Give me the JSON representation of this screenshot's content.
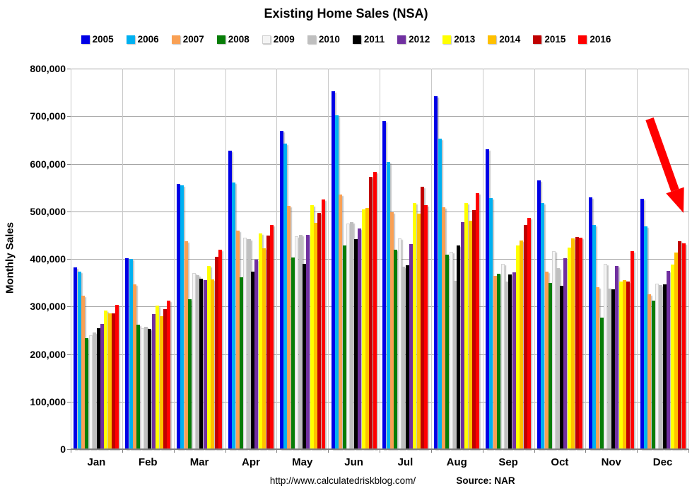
{
  "title": "Existing Home Sales (NSA)",
  "y_axis": {
    "title": "Monthly Sales",
    "tick_labels": [
      "800,000",
      "700,000",
      "600,000",
      "500,000",
      "400,000",
      "300,000",
      "200,000",
      "100,000",
      "0"
    ]
  },
  "footer": {
    "url": "http://www.calculatedriskblog.com/",
    "source": "Source: NAR"
  },
  "annotations": {
    "arrow": "red-down-right-arrow",
    "arrow_color": "#ff0000"
  },
  "chart_data": {
    "type": "bar",
    "title": "Existing Home Sales (NSA)",
    "xlabel": "",
    "ylabel": "Monthly Sales",
    "ylim": [
      0,
      800000
    ],
    "grid": true,
    "legend_position": "top",
    "categories": [
      "Jan",
      "Feb",
      "Mar",
      "Apr",
      "May",
      "Jun",
      "Jul",
      "Aug",
      "Sep",
      "Oct",
      "Nov",
      "Dec"
    ],
    "series": [
      {
        "name": "2005",
        "color": "#0000e6",
        "values": [
          382000,
          401000,
          558000,
          627000,
          669000,
          753000,
          690000,
          742000,
          630000,
          565000,
          530000,
          527000
        ]
      },
      {
        "name": "2006",
        "color": "#00b0f0",
        "values": [
          373000,
          400000,
          555000,
          560000,
          643000,
          702000,
          603000,
          653000,
          528000,
          517000,
          472000,
          469000
        ]
      },
      {
        "name": "2007",
        "color": "#f9a054",
        "values": [
          322000,
          346000,
          437000,
          460000,
          511000,
          535000,
          498000,
          509000,
          364000,
          373000,
          341000,
          325000
        ]
      },
      {
        "name": "2008",
        "color": "#077d07",
        "values": [
          234000,
          262000,
          316000,
          362000,
          403000,
          428000,
          419000,
          409000,
          369000,
          349000,
          276000,
          313000
        ]
      },
      {
        "name": "2009",
        "color": "#f4f4f4",
        "values": [
          240000,
          255000,
          370000,
          444000,
          448000,
          475000,
          443000,
          415000,
          390000,
          417000,
          390000,
          348000
        ]
      },
      {
        "name": "2010",
        "color": "#bfbfbf",
        "values": [
          245000,
          257000,
          366000,
          441000,
          450000,
          477000,
          384000,
          354000,
          352000,
          380000,
          338000,
          345000
        ]
      },
      {
        "name": "2011",
        "color": "#000000",
        "values": [
          254000,
          253000,
          358000,
          374000,
          390000,
          441000,
          386000,
          428000,
          368000,
          344000,
          336000,
          347000
        ]
      },
      {
        "name": "2012",
        "color": "#7030a0",
        "values": [
          263000,
          284000,
          355000,
          399000,
          450000,
          464000,
          431000,
          477000,
          372000,
          402000,
          385000,
          375000
        ]
      },
      {
        "name": "2013",
        "color": "#ffff00",
        "values": [
          292000,
          302000,
          385000,
          454000,
          513000,
          504000,
          517000,
          517000,
          428000,
          424000,
          352000,
          388000
        ]
      },
      {
        "name": "2014",
        "color": "#ffc000",
        "values": [
          285000,
          280000,
          357000,
          422000,
          476000,
          507000,
          495000,
          480000,
          438000,
          443000,
          355000,
          414000
        ]
      },
      {
        "name": "2015",
        "color": "#c00000",
        "values": [
          285000,
          294000,
          404000,
          449000,
          496000,
          573000,
          551000,
          503000,
          471000,
          446000,
          353000,
          437000
        ]
      },
      {
        "name": "2016",
        "color": "#ff0000",
        "values": [
          303000,
          313000,
          420000,
          472000,
          525000,
          583000,
          513000,
          539000,
          487000,
          444000,
          417000,
          433000
        ]
      }
    ]
  }
}
